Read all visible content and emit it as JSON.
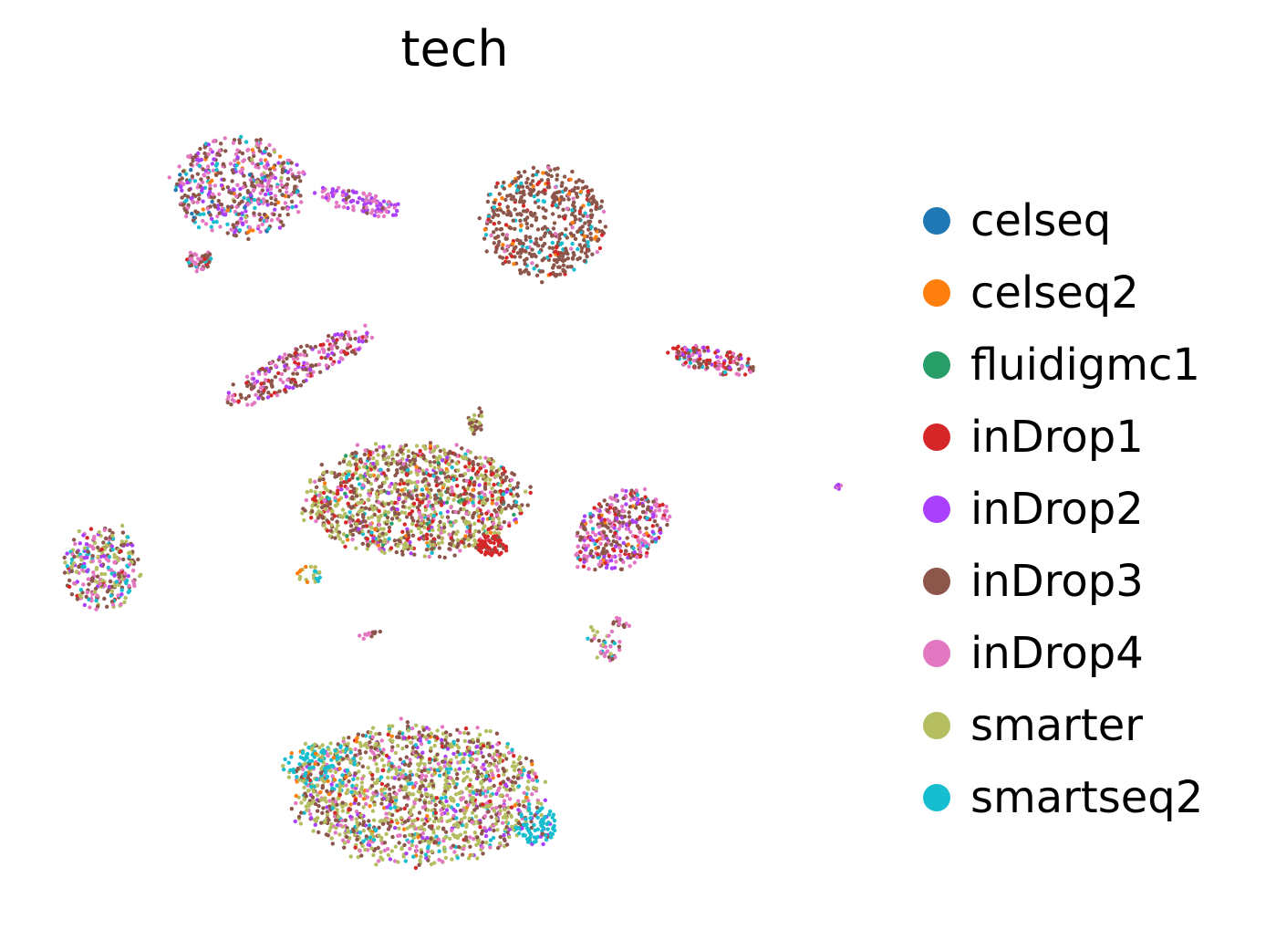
{
  "chart_data": {
    "type": "scatter",
    "title": "tech",
    "xlabel": "",
    "ylabel": "",
    "grid": false,
    "axes_visible": false,
    "legend_position": "right",
    "series": [
      {
        "name": "celseq",
        "color": "#1f77b4"
      },
      {
        "name": "celseq2",
        "color": "#ff7f0e"
      },
      {
        "name": "fluidigmc1",
        "color": "#279e68"
      },
      {
        "name": "inDrop1",
        "color": "#d62728"
      },
      {
        "name": "inDrop2",
        "color": "#aa40fc"
      },
      {
        "name": "inDrop3",
        "color": "#8c564b"
      },
      {
        "name": "inDrop4",
        "color": "#e377c2"
      },
      {
        "name": "smarter",
        "color": "#b5bd61"
      },
      {
        "name": "smartseq2",
        "color": "#17becf"
      }
    ]
  }
}
